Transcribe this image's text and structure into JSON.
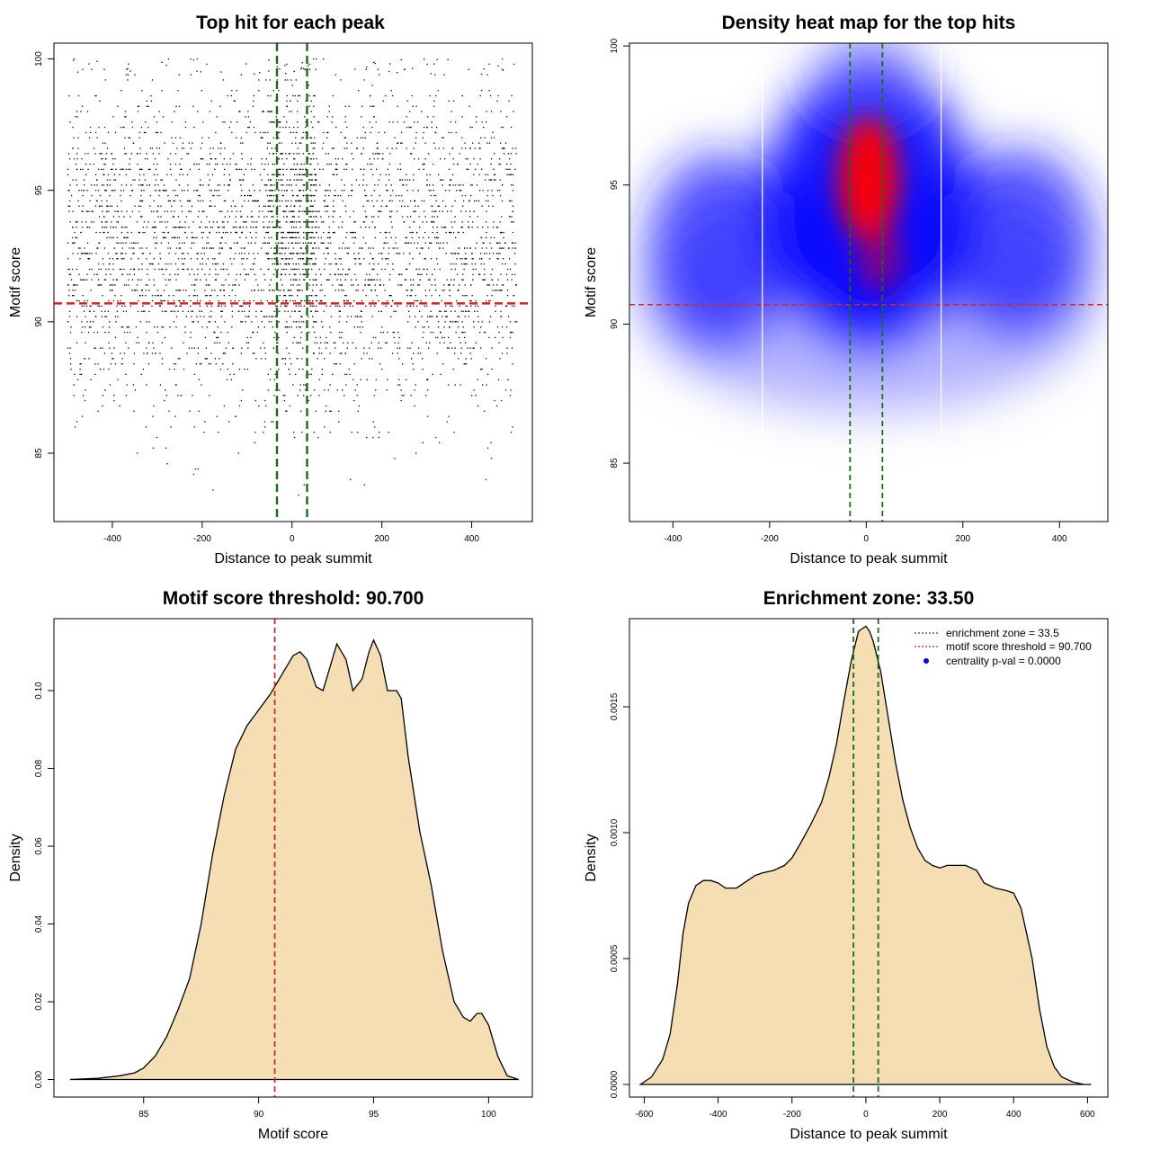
{
  "chart_data": [
    {
      "id": "scatter",
      "type": "scatter",
      "title": "Top hit for each peak",
      "xlabel": "Distance to peak summit",
      "ylabel": "Motif score",
      "xlim": [
        -530,
        535
      ],
      "ylim": [
        82.4,
        100.6
      ],
      "xticks": [
        -400,
        -200,
        0,
        200,
        400
      ],
      "yticks": [
        85,
        90,
        95,
        100
      ],
      "threshold_y": 90.7,
      "zone_x": [
        -33.5,
        33.5
      ],
      "threshold_color": "#e02020",
      "zone_color": "#1a6b1a",
      "point_color": "#000000",
      "n_points": 4200,
      "x_range": [
        -500,
        500
      ],
      "score_mean": 92.9,
      "score_sd": 3.1,
      "central_score_mean": 94.2,
      "central_score_sd": 2.6,
      "central_fraction": 0.13
    },
    {
      "id": "heatmap",
      "type": "heatmap",
      "title": "Density heat map for the top hits",
      "xlabel": "Distance to peak summit",
      "ylabel": "Motif score",
      "xlim": [
        -490,
        500
      ],
      "ylim": [
        82.9,
        100.1
      ],
      "xticks": [
        -400,
        -200,
        0,
        200,
        400
      ],
      "yticks": [
        85,
        90,
        95,
        100
      ],
      "threshold_y": 90.7,
      "zone_x": [
        -33.5,
        33.5
      ],
      "white_lines_x": [
        -215,
        155
      ],
      "threshold_color": "#e02020",
      "zone_color": "#1a6b1a",
      "colors": [
        "#ffffff",
        "#0000ff",
        "#ff0000"
      ]
    },
    {
      "id": "score-density",
      "type": "area",
      "title": "Motif score threshold: 90.700",
      "xlabel": "Motif score",
      "ylabel": "Density",
      "xlim": [
        81.1,
        101.9
      ],
      "ylim": [
        -0.0045,
        0.1185
      ],
      "xticks": [
        85,
        90,
        95,
        100
      ],
      "yticks": [
        0.0,
        0.02,
        0.04,
        0.06,
        0.08,
        0.1
      ],
      "ytick_labels": [
        "0.00",
        "0.02",
        "0.04",
        "0.06",
        "0.08",
        "0.10"
      ],
      "threshold_x": 90.7,
      "threshold_color": "#c03030",
      "fill": "#f5deb3",
      "x": [
        81.8,
        83.0,
        84.0,
        84.6,
        85.0,
        85.5,
        86.0,
        86.5,
        87.0,
        87.5,
        88.0,
        88.5,
        89.0,
        89.5,
        90.0,
        90.5,
        91.0,
        91.5,
        91.8,
        92.1,
        92.5,
        92.8,
        93.1,
        93.4,
        93.8,
        94.1,
        94.5,
        94.8,
        95.0,
        95.3,
        95.6,
        96.0,
        96.2,
        96.5,
        97.0,
        97.5,
        98.0,
        98.5,
        98.9,
        99.2,
        99.5,
        99.7,
        100.0,
        100.4,
        100.8,
        101.3
      ],
      "y": [
        0.0,
        0.0003,
        0.001,
        0.0017,
        0.003,
        0.006,
        0.011,
        0.018,
        0.026,
        0.04,
        0.058,
        0.073,
        0.085,
        0.091,
        0.095,
        0.099,
        0.104,
        0.109,
        0.11,
        0.108,
        0.101,
        0.1,
        0.106,
        0.112,
        0.108,
        0.1,
        0.103,
        0.11,
        0.113,
        0.109,
        0.1,
        0.1,
        0.098,
        0.083,
        0.064,
        0.05,
        0.033,
        0.02,
        0.016,
        0.015,
        0.017,
        0.017,
        0.014,
        0.006,
        0.001,
        0.0
      ]
    },
    {
      "id": "distance-density",
      "type": "area",
      "title": "Enrichment zone: 33.50",
      "xlabel": "Distance to peak summit",
      "ylabel": "Density",
      "xlim": [
        -640,
        655
      ],
      "ylim": [
        -5e-05,
        0.00185
      ],
      "xticks": [
        -600,
        -400,
        -200,
        0,
        200,
        400,
        600
      ],
      "yticks": [
        0.0,
        0.0005,
        0.001,
        0.0015
      ],
      "ytick_labels": [
        "0.0000",
        "0.0005",
        "0.0010",
        "0.0015"
      ],
      "zone_x": [
        -33.5,
        33.5
      ],
      "zone_color": "#1a6b1a",
      "fill": "#f5deb3",
      "x": [
        -610,
        -580,
        -550,
        -530,
        -510,
        -495,
        -480,
        -460,
        -440,
        -420,
        -400,
        -380,
        -350,
        -320,
        -300,
        -280,
        -250,
        -220,
        -200,
        -180,
        -150,
        -120,
        -100,
        -80,
        -60,
        -40,
        -20,
        0,
        10,
        20,
        40,
        60,
        80,
        100,
        120,
        140,
        160,
        180,
        200,
        220,
        240,
        270,
        300,
        320,
        350,
        380,
        400,
        420,
        450,
        470,
        490,
        510,
        530,
        560,
        590,
        610
      ],
      "y": [
        0.0,
        3e-05,
        0.0001,
        0.0002,
        0.0004,
        0.0006,
        0.00072,
        0.00079,
        0.00081,
        0.00081,
        0.0008,
        0.00078,
        0.00078,
        0.00081,
        0.00083,
        0.00084,
        0.00085,
        0.00087,
        0.0009,
        0.00095,
        0.00103,
        0.00112,
        0.00122,
        0.00135,
        0.00152,
        0.00168,
        0.0018,
        0.00182,
        0.0018,
        0.00176,
        0.00164,
        0.00146,
        0.00128,
        0.00113,
        0.00102,
        0.00094,
        0.00089,
        0.00087,
        0.00086,
        0.00087,
        0.00087,
        0.00087,
        0.00085,
        0.0008,
        0.00078,
        0.00077,
        0.00076,
        0.0007,
        0.0005,
        0.0003,
        0.00015,
        7e-05,
        3e-05,
        1e-05,
        0.0,
        0.0
      ],
      "legend": {
        "placement": "top-right",
        "entries": [
          {
            "label": "enrichment zone = 33.5",
            "color": "#1a6b1a",
            "kind": "dotted-line"
          },
          {
            "label": "motif score threshold = 90.700",
            "color": "#e02020",
            "kind": "dotted-line"
          },
          {
            "label": "centrality p-val = 0.0000",
            "color": "#0000ff",
            "kind": "point"
          }
        ]
      }
    }
  ]
}
